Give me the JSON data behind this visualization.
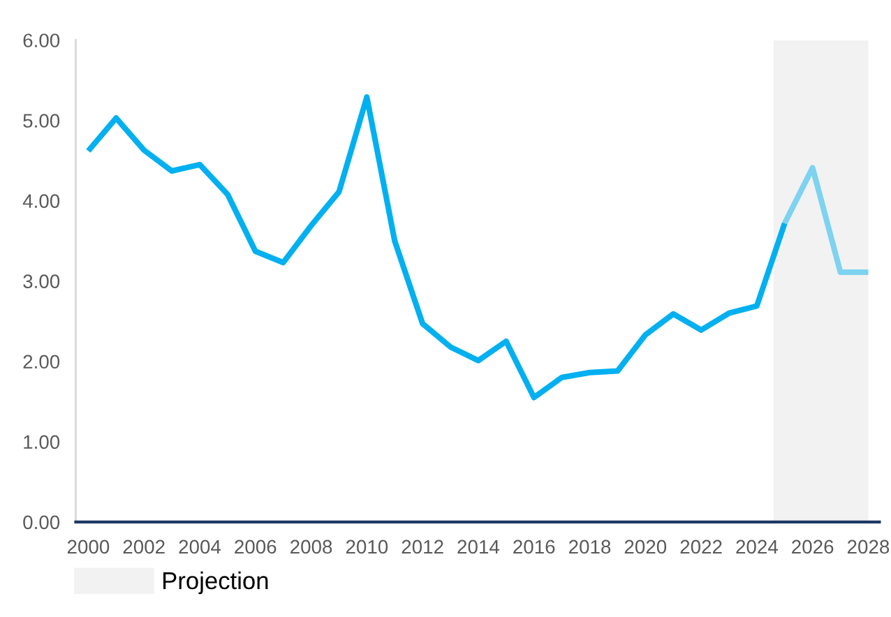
{
  "chart_data": {
    "type": "line",
    "series": [
      {
        "color": "#00b0f0",
        "x": [
          2000,
          2001,
          2002,
          2003,
          2004,
          2005,
          2006,
          2007,
          2008,
          2009,
          2010,
          2011,
          2012,
          2013,
          2014,
          2015,
          2016,
          2017,
          2018,
          2019,
          2020,
          2021,
          2022,
          2023,
          2024,
          2025
        ],
        "values": [
          4.62,
          5.03,
          4.63,
          4.37,
          4.45,
          4.08,
          3.37,
          3.23,
          3.69,
          4.11,
          5.29,
          3.5,
          2.47,
          2.18,
          2.01,
          2.25,
          1.55,
          1.8,
          1.86,
          1.88,
          2.33,
          2.59,
          2.39,
          2.6,
          2.69,
          3.72
        ]
      },
      {
        "color": "#7dd3f0",
        "x": [
          2025,
          2026,
          2027,
          2028
        ],
        "values": [
          3.72,
          4.41,
          3.11,
          3.11
        ]
      }
    ],
    "xlim": [
      1999.55,
      2028.4
    ],
    "xticks": [
      2000,
      2002,
      2004,
      2006,
      2008,
      2010,
      2012,
      2014,
      2016,
      2018,
      2020,
      2022,
      2024,
      2026,
      2028
    ],
    "ylim": [
      0,
      6
    ],
    "yticks": [
      {
        "value": 0,
        "label": "0.00"
      },
      {
        "value": 1,
        "label": "1.00"
      },
      {
        "value": 2,
        "label": "2.00"
      },
      {
        "value": 3,
        "label": "3.00"
      },
      {
        "value": 4,
        "label": "4.00"
      },
      {
        "value": 5,
        "label": "5.00"
      },
      {
        "value": 6,
        "label": "6.00"
      }
    ],
    "bands": [
      {
        "axis": "x",
        "from": 2024.6,
        "to": 2028,
        "label": "Projection",
        "color": "#f2f2f2"
      }
    ],
    "legend": "bottom left",
    "line_style": "solid",
    "marker": "none"
  }
}
